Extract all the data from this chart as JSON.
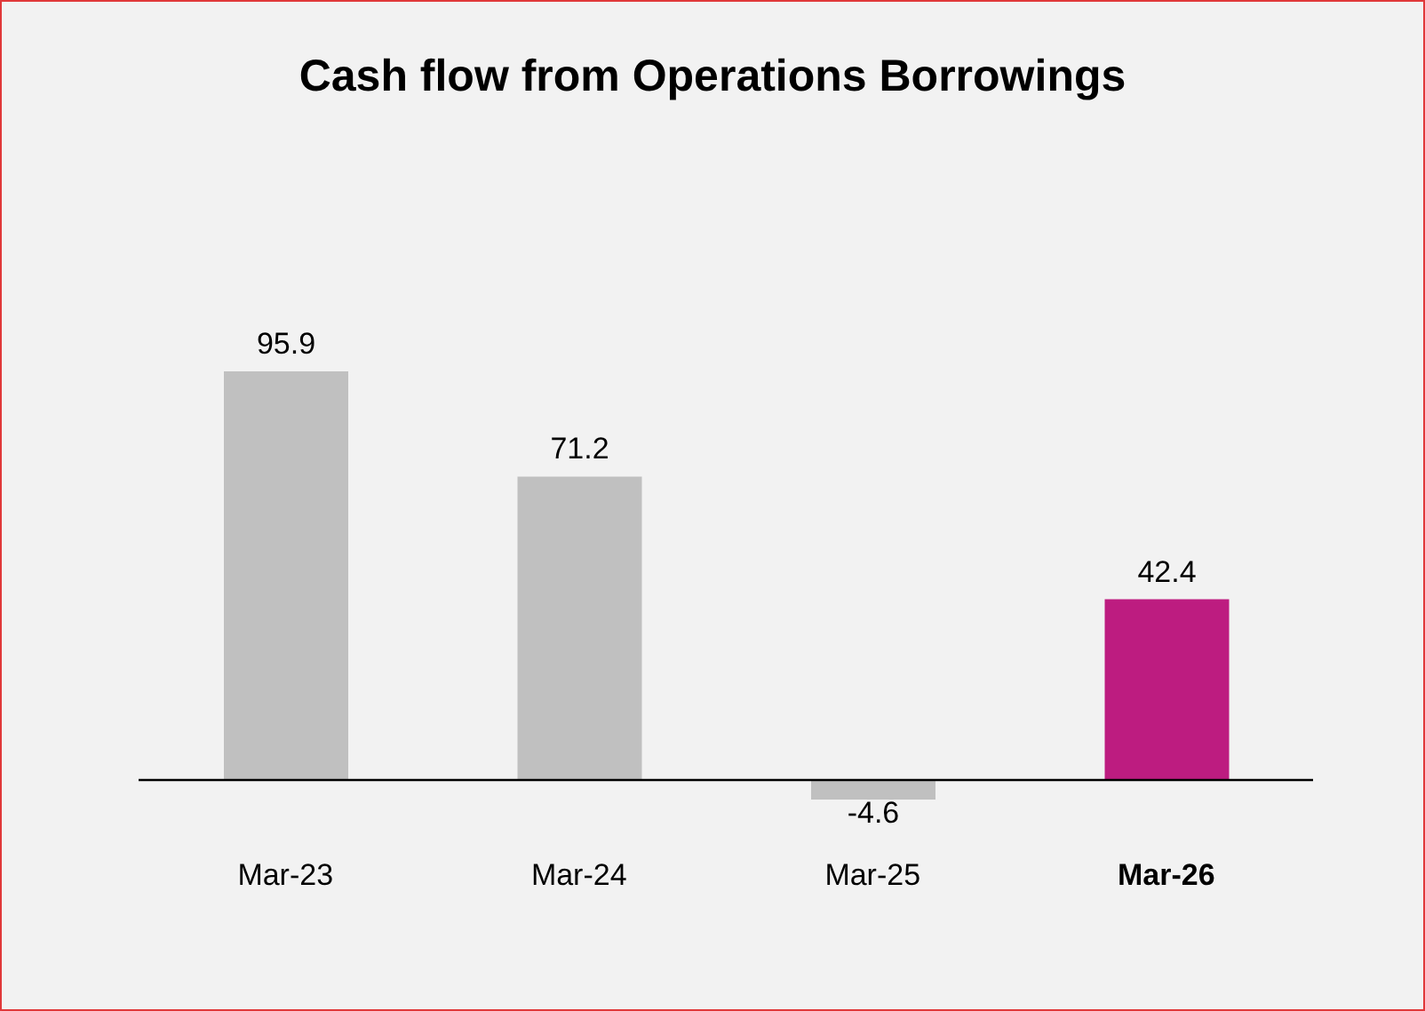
{
  "chart_data": {
    "type": "bar",
    "title": "Cash flow from Operations Borrowings",
    "categories": [
      "Mar-23",
      "Mar-24",
      "Mar-25",
      "Mar-26"
    ],
    "values": [
      95.9,
      71.2,
      -4.6,
      42.4
    ],
    "colors": [
      "#c0c0c0",
      "#c0c0c0",
      "#c0c0c0",
      "#bd1c80"
    ],
    "data_labels": true
  }
}
